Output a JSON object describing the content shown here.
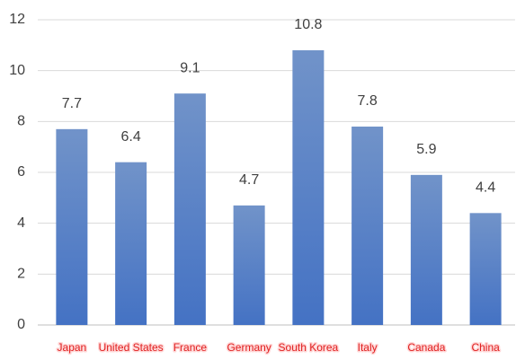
{
  "chart_data": {
    "type": "bar",
    "categories": [
      "Japan",
      "United States",
      "France",
      "Germany",
      "South Korea",
      "Italy",
      "Canada",
      "China"
    ],
    "values": [
      7.7,
      6.4,
      9.1,
      4.7,
      10.8,
      7.8,
      5.9,
      4.4
    ],
    "color": "#4472c4",
    "ylim": [
      0,
      12
    ],
    "yticks": [
      0,
      2,
      4,
      6,
      8,
      10,
      12
    ],
    "grid": true
  }
}
